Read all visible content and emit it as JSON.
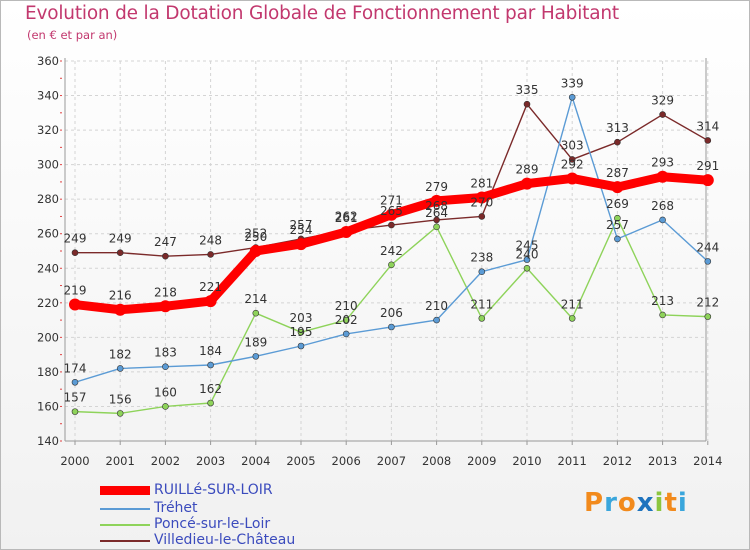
{
  "title": "Evolution de la Dotation Globale de Fonctionnement par Habitant",
  "subtitle": "(en € et par an)",
  "brand": {
    "chars": [
      "P",
      "r",
      "o",
      "x",
      "i",
      "t",
      "i"
    ],
    "colors": [
      "#f28a1c",
      "#3aa6dc",
      "#f28a1c",
      "#1e73be",
      "#8cc63f",
      "#f28a1c",
      "#3aa6dc"
    ]
  },
  "chart_data": {
    "type": "line",
    "title": "Evolution de la Dotation Globale de Fonctionnement par Habitant",
    "subtitle": "(en € et par an)",
    "xlabel": "",
    "ylabel": "",
    "x": [
      "2000",
      "2001",
      "2002",
      "2003",
      "2004",
      "2005",
      "2006",
      "2007",
      "2008",
      "2009",
      "2010",
      "2011",
      "2012",
      "2013",
      "2014"
    ],
    "ylim": [
      140,
      360
    ],
    "yticks": [
      140,
      160,
      180,
      200,
      220,
      240,
      260,
      280,
      300,
      320,
      340,
      360
    ],
    "grid": true,
    "legend_position": "bottom-left",
    "series": [
      {
        "name": "RUILLé-SUR-LOIR",
        "color": "#ff0000",
        "values": [
          219,
          216,
          218,
          221,
          250,
          254,
          261,
          271,
          279,
          281,
          289,
          292,
          287,
          293,
          291
        ]
      },
      {
        "name": "Tréhet",
        "color": "#5b9bd5",
        "values": [
          174,
          182,
          183,
          184,
          189,
          195,
          202,
          206,
          210,
          238,
          245,
          339,
          257,
          268,
          244
        ]
      },
      {
        "name": "Poncé-sur-le-Loir",
        "color": "#8ed35a",
        "values": [
          157,
          156,
          160,
          162,
          214,
          203,
          210,
          242,
          264,
          211,
          240,
          211,
          269,
          213,
          212
        ]
      },
      {
        "name": "Villedieu-le-Château",
        "color": "#7b2a2a",
        "values": [
          249,
          249,
          247,
          248,
          252,
          257,
          262,
          265,
          268,
          270,
          335,
          303,
          313,
          329,
          314
        ]
      }
    ],
    "data_labels": [
      [
        "219",
        "216",
        "218",
        "221",
        "250",
        "254",
        "261",
        "271",
        "279",
        "281",
        "289",
        "292",
        "287",
        "293",
        "291"
      ],
      [
        "174",
        "182",
        "183",
        "184",
        "189",
        "195",
        "202",
        "206",
        "210",
        "238",
        "245",
        "339",
        "257",
        "268",
        "244"
      ],
      [
        "157",
        "156",
        "160",
        "162",
        "214",
        "203",
        "210",
        "242",
        "264",
        "211",
        "240",
        "211",
        "269",
        "213",
        "212"
      ],
      [
        "249",
        "249",
        "247",
        "248",
        "252",
        "257",
        "262",
        "265",
        "268",
        "270",
        "335",
        "303",
        "313",
        "329",
        "314"
      ]
    ]
  }
}
